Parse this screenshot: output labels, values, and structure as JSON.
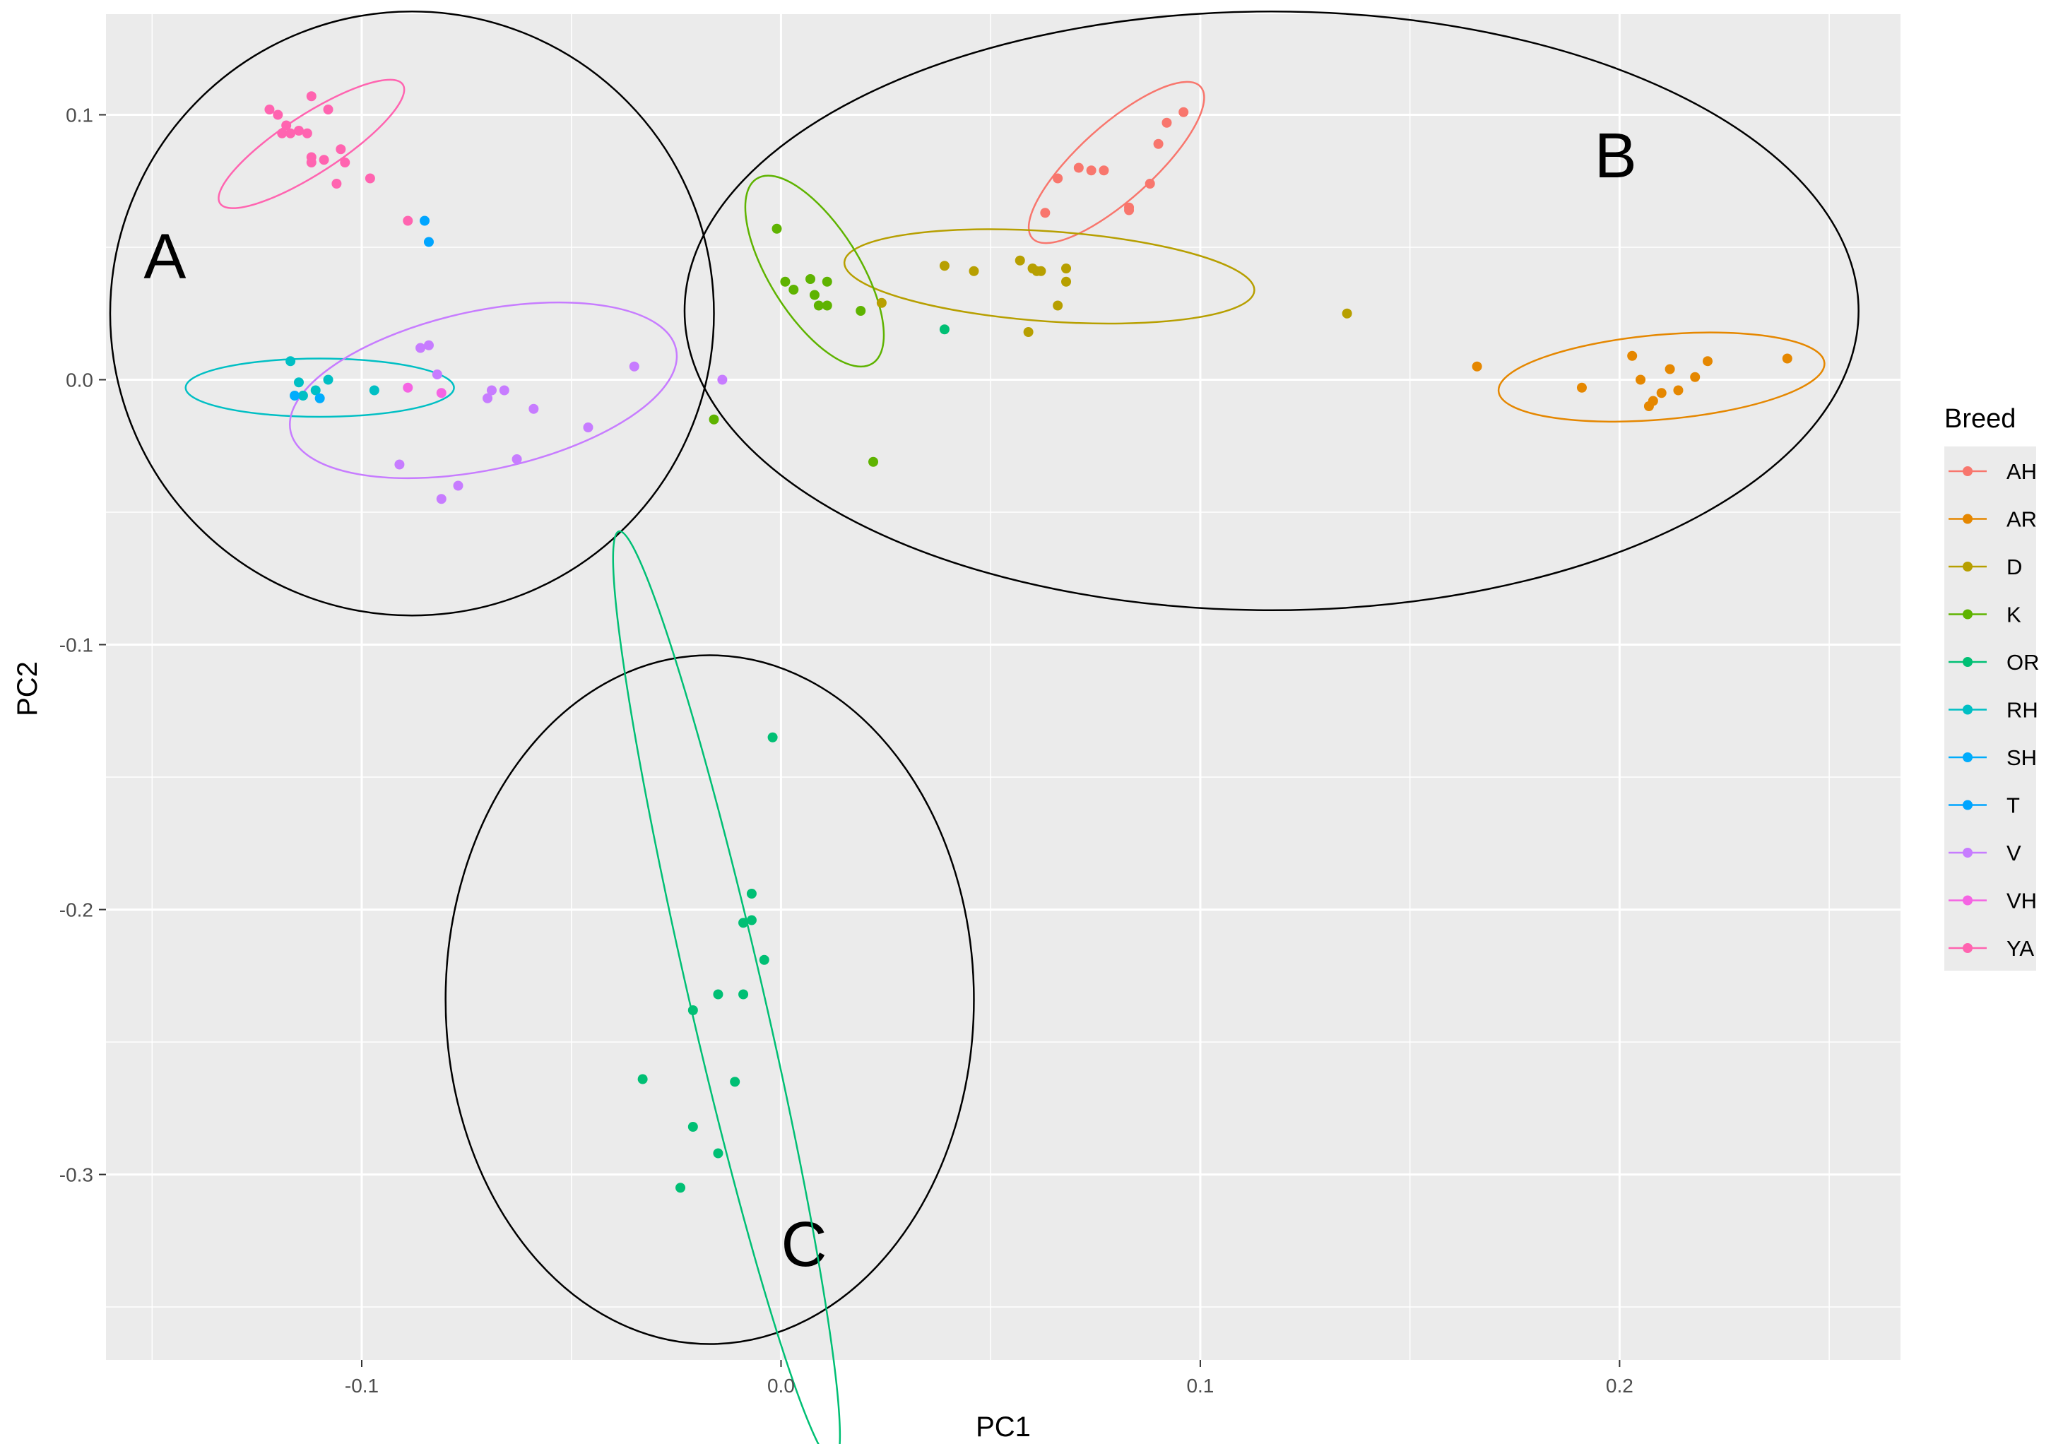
{
  "chart_data": {
    "type": "scatter",
    "title": "",
    "xlabel": "PC1",
    "ylabel": "PC2",
    "xlim": [
      -0.161,
      0.267
    ],
    "ylim": [
      -0.37,
      0.138
    ],
    "x_ticks": [
      -0.1,
      0.0,
      0.1,
      0.2
    ],
    "x_tick_labels": [
      "-0.1",
      "0.0",
      "0.1",
      "0.2"
    ],
    "y_ticks": [
      0.1,
      0.0,
      -0.1,
      -0.2,
      -0.3
    ],
    "y_tick_labels": [
      "0.1",
      "0.0",
      "-0.1",
      "-0.2",
      "-0.3"
    ],
    "grid": true,
    "background": "#ebebeb",
    "legend": {
      "title": "Breed",
      "placement": "right"
    },
    "series": [
      {
        "name": "AH",
        "color": "#F8766D",
        "points": [
          [
            0.063,
            0.063
          ],
          [
            0.066,
            0.076
          ],
          [
            0.071,
            0.08
          ],
          [
            0.074,
            0.079
          ],
          [
            0.077,
            0.079
          ],
          [
            0.083,
            0.064
          ],
          [
            0.083,
            0.065
          ],
          [
            0.088,
            0.074
          ],
          [
            0.09,
            0.089
          ],
          [
            0.092,
            0.097
          ],
          [
            0.096,
            0.101
          ]
        ],
        "ellipse": {
          "cx": 0.08,
          "cy": 0.082,
          "rx": 0.027,
          "ry": 0.014,
          "angle": 42
        }
      },
      {
        "name": "AR",
        "color": "#E58700",
        "points": [
          [
            0.166,
            0.005
          ],
          [
            0.191,
            -0.003
          ],
          [
            0.203,
            0.009
          ],
          [
            0.205,
            0.0
          ],
          [
            0.207,
            -0.01
          ],
          [
            0.208,
            -0.008
          ],
          [
            0.21,
            -0.005
          ],
          [
            0.212,
            0.004
          ],
          [
            0.214,
            -0.004
          ],
          [
            0.218,
            0.001
          ],
          [
            0.221,
            0.007
          ],
          [
            0.24,
            0.008
          ]
        ],
        "ellipse": {
          "cx": 0.21,
          "cy": 0.001,
          "rx": 0.039,
          "ry": 0.016,
          "angle": 5
        }
      },
      {
        "name": "D",
        "color": "#B79F00",
        "points": [
          [
            0.024,
            0.029
          ],
          [
            0.039,
            0.043
          ],
          [
            0.046,
            0.041
          ],
          [
            0.057,
            0.045
          ],
          [
            0.059,
            0.018
          ],
          [
            0.06,
            0.042
          ],
          [
            0.061,
            0.041
          ],
          [
            0.062,
            0.041
          ],
          [
            0.066,
            0.028
          ],
          [
            0.068,
            0.042
          ],
          [
            0.068,
            0.037
          ],
          [
            0.135,
            0.025
          ]
        ],
        "ellipse": {
          "cx": 0.064,
          "cy": 0.039,
          "rx": 0.049,
          "ry": 0.017,
          "angle": -4
        }
      },
      {
        "name": "K",
        "color": "#5EB300",
        "points": [
          [
            -0.001,
            0.057
          ],
          [
            0.001,
            0.037
          ],
          [
            0.003,
            0.034
          ],
          [
            0.007,
            0.038
          ],
          [
            0.008,
            0.032
          ],
          [
            0.009,
            0.028
          ],
          [
            0.011,
            0.028
          ],
          [
            0.011,
            0.037
          ],
          [
            0.019,
            0.026
          ],
          [
            -0.016,
            -0.015
          ],
          [
            0.022,
            -0.031
          ]
        ],
        "ellipse": {
          "cx": 0.008,
          "cy": 0.041,
          "rx": 0.026,
          "ry": 0.017,
          "angle": -58
        }
      },
      {
        "name": "OR",
        "color": "#00BF74",
        "points": [
          [
            -0.002,
            -0.135
          ],
          [
            -0.007,
            -0.194
          ],
          [
            -0.009,
            -0.205
          ],
          [
            -0.007,
            -0.204
          ],
          [
            -0.004,
            -0.219
          ],
          [
            -0.015,
            -0.232
          ],
          [
            -0.009,
            -0.232
          ],
          [
            -0.021,
            -0.238
          ],
          [
            -0.033,
            -0.264
          ],
          [
            -0.011,
            -0.265
          ],
          [
            -0.021,
            -0.282
          ],
          [
            -0.015,
            -0.292
          ],
          [
            -0.024,
            -0.305
          ],
          [
            0.039,
            0.019
          ]
        ],
        "ellipse": {
          "cx": -0.013,
          "cy": -0.233,
          "rx": 0.114,
          "ry": 0.014,
          "angle": -77
        }
      },
      {
        "name": "RH",
        "color": "#00BFC4",
        "points": [
          [
            -0.117,
            0.007
          ],
          [
            -0.115,
            -0.001
          ],
          [
            -0.114,
            -0.006
          ],
          [
            -0.111,
            -0.004
          ],
          [
            -0.108,
            0.0
          ],
          [
            -0.097,
            -0.004
          ]
        ],
        "ellipse": {
          "cx": -0.11,
          "cy": -0.003,
          "rx": 0.032,
          "ry": 0.011,
          "angle": 0
        }
      },
      {
        "name": "SH",
        "color": "#00ACFC",
        "points": [
          [
            -0.11,
            -0.007
          ],
          [
            -0.116,
            -0.006
          ]
        ],
        "ellipse": null
      },
      {
        "name": "T",
        "color": "#00A5FF",
        "points": [
          [
            -0.084,
            0.052
          ],
          [
            -0.085,
            0.06
          ]
        ],
        "ellipse": null
      },
      {
        "name": "V",
        "color": "#C77CFF",
        "points": [
          [
            -0.086,
            0.012
          ],
          [
            -0.084,
            0.013
          ],
          [
            -0.082,
            0.002
          ],
          [
            -0.07,
            -0.007
          ],
          [
            -0.069,
            -0.004
          ],
          [
            -0.066,
            -0.004
          ],
          [
            -0.059,
            -0.011
          ],
          [
            -0.046,
            -0.018
          ],
          [
            -0.035,
            0.005
          ],
          [
            -0.014,
            0.0
          ],
          [
            -0.091,
            -0.032
          ],
          [
            -0.081,
            -0.045
          ],
          [
            -0.077,
            -0.04
          ],
          [
            -0.063,
            -0.03
          ]
        ],
        "ellipse": {
          "cx": -0.071,
          "cy": -0.004,
          "rx": 0.047,
          "ry": 0.03,
          "angle": 12
        }
      },
      {
        "name": "VH",
        "color": "#F564E3",
        "points": [
          [
            -0.089,
            -0.003
          ],
          [
            -0.081,
            -0.005
          ]
        ],
        "ellipse": null
      },
      {
        "name": "YA",
        "color": "#FF64B0",
        "points": [
          [
            -0.122,
            0.102
          ],
          [
            -0.12,
            0.1
          ],
          [
            -0.119,
            0.093
          ],
          [
            -0.118,
            0.096
          ],
          [
            -0.117,
            0.093
          ],
          [
            -0.115,
            0.094
          ],
          [
            -0.113,
            0.093
          ],
          [
            -0.112,
            0.107
          ],
          [
            -0.112,
            0.084
          ],
          [
            -0.112,
            0.082
          ],
          [
            -0.109,
            0.083
          ],
          [
            -0.108,
            0.102
          ],
          [
            -0.106,
            0.074
          ],
          [
            -0.105,
            0.087
          ],
          [
            -0.104,
            0.082
          ],
          [
            -0.098,
            0.076
          ],
          [
            -0.089,
            0.06
          ]
        ],
        "ellipse": {
          "cx": -0.112,
          "cy": 0.089,
          "rx": 0.026,
          "ry": 0.011,
          "angle": 33
        }
      }
    ],
    "clusters": [
      {
        "label": "A",
        "cx": -0.088,
        "cy": 0.025,
        "rx": 0.072,
        "ry": 0.114
      },
      {
        "label": "B",
        "cx": 0.117,
        "cy": 0.026,
        "rx": 0.14,
        "ry": 0.113
      },
      {
        "label": "C",
        "cx": -0.017,
        "cy": -0.234,
        "rx": 0.063,
        "ry": 0.13
      }
    ]
  }
}
